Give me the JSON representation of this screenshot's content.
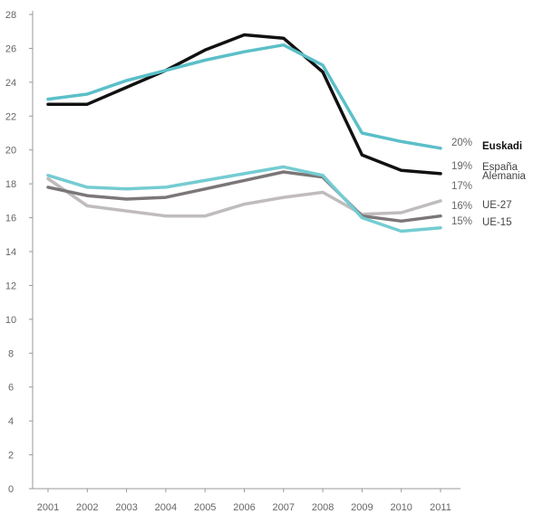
{
  "chart_data": {
    "type": "line",
    "title": "",
    "xlabel": "",
    "ylabel": "",
    "x": [
      "2001",
      "2002",
      "2003",
      "2004",
      "2005",
      "2006",
      "2007",
      "2008",
      "2009",
      "2010",
      "2011"
    ],
    "ylim": [
      0,
      28
    ],
    "yticks": [
      0,
      2,
      4,
      6,
      8,
      10,
      12,
      14,
      16,
      18,
      20,
      22,
      24,
      26,
      28
    ],
    "ytick_labels": [
      "0",
      "2",
      "4",
      "6",
      "8",
      "10",
      "12",
      "14",
      "16",
      "18",
      "20",
      "22",
      "24",
      "26",
      "28"
    ],
    "grid": false,
    "legend": "end-of-line labels",
    "series": [
      {
        "name": "Euskadi",
        "end_label": "20%",
        "color": "#5bbfc8",
        "bold": true,
        "values": [
          23.0,
          23.3,
          24.1,
          24.7,
          25.3,
          25.8,
          26.2,
          25.0,
          21.0,
          20.5,
          20.1
        ]
      },
      {
        "name": "España",
        "end_label": "19%",
        "color": "#111111",
        "bold": false,
        "values": [
          22.7,
          22.7,
          23.7,
          24.7,
          25.9,
          26.8,
          26.6,
          24.6,
          19.7,
          18.8,
          18.6
        ]
      },
      {
        "name": "Alemania",
        "end_label": "17%",
        "color": "#c0bcbd",
        "bold": false,
        "values": [
          18.3,
          16.7,
          16.4,
          16.1,
          16.1,
          16.8,
          17.2,
          17.5,
          16.2,
          16.3,
          17.0
        ]
      },
      {
        "name": "UE-27",
        "end_label": "16%",
        "color": "#7b7678",
        "bold": false,
        "values": [
          17.8,
          17.3,
          17.1,
          17.2,
          17.7,
          18.2,
          18.7,
          18.4,
          16.1,
          15.8,
          16.1
        ]
      },
      {
        "name": "UE-15",
        "end_label": "15%",
        "color": "#74ccd2",
        "bold": false,
        "values": [
          18.5,
          17.8,
          17.7,
          17.8,
          18.2,
          18.6,
          19.0,
          18.5,
          16.0,
          15.2,
          15.4
        ]
      }
    ]
  }
}
